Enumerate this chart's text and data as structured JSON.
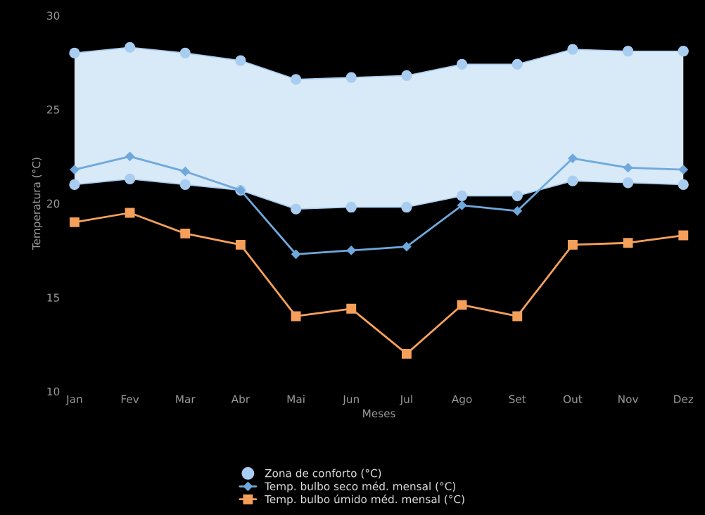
{
  "chart_data": {
    "type": "line",
    "xlabel": "Meses",
    "ylabel": "Temperatura (°C)",
    "categories": [
      "Jan",
      "Fev",
      "Mar",
      "Abr",
      "Mai",
      "Jun",
      "Jul",
      "Ago",
      "Set",
      "Out",
      "Nov",
      "Dez"
    ],
    "series": [
      {
        "color": "#a9cdf0",
        "marker": "circle",
        "values": [
          21.0,
          21.3,
          21.0,
          20.7,
          19.7,
          19.8,
          19.8,
          20.4,
          20.4,
          21.2,
          21.1,
          21.0
        ]
      },
      {
        "name": "Zona de conforto (°C)",
        "color": "#a9cdf0",
        "marker": "circle",
        "values": [
          28.0,
          28.3,
          28.0,
          27.6,
          26.6,
          26.7,
          26.8,
          27.4,
          27.4,
          28.2,
          28.1,
          28.1
        ],
        "lower": [
          21.0,
          21.3,
          21.0,
          20.7,
          19.7,
          19.8,
          19.8,
          20.4,
          20.4,
          21.2,
          21.1,
          21.0
        ],
        "upper": [
          28.0,
          28.3,
          28.0,
          27.6,
          26.6,
          26.7,
          26.8,
          27.4,
          27.4,
          28.2,
          28.1,
          28.1
        ]
      },
      {
        "name": "Temp. bulbo seco méd. mensal (°C)",
        "color": "#6fa8dc",
        "marker": "diamond",
        "values": [
          21.8,
          22.5,
          21.7,
          20.7,
          17.3,
          17.5,
          17.7,
          19.9,
          19.6,
          22.4,
          21.9,
          21.8
        ]
      },
      {
        "name": "Temp. bulbo úmido méd. mensal (°C)",
        "color": "#f5a05a",
        "marker": "square",
        "values": [
          19.0,
          19.5,
          18.4,
          17.8,
          14.0,
          14.4,
          12.0,
          14.6,
          14.0,
          17.8,
          17.9,
          18.3
        ]
      }
    ],
    "ylim": [
      10,
      30
    ],
    "yticks": [
      10,
      15,
      20,
      25,
      30
    ],
    "grid": false,
    "legend": "bottom"
  }
}
